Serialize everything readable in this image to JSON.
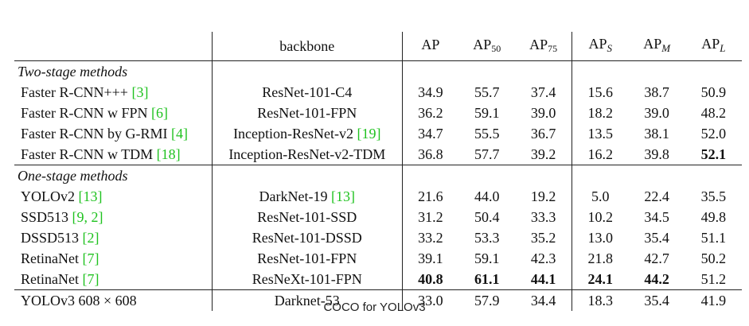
{
  "header": {
    "backbone": "backbone",
    "metrics": [
      {
        "base": "AP",
        "sub": ""
      },
      {
        "base": "AP",
        "sub": "50"
      },
      {
        "base": "AP",
        "sub": "75"
      },
      {
        "base": "AP",
        "sub": "S"
      },
      {
        "base": "AP",
        "sub": "M"
      },
      {
        "base": "AP",
        "sub": "L"
      }
    ]
  },
  "sections": [
    {
      "title": "Two-stage methods",
      "rows": [
        {
          "method": "Faster R-CNN+++",
          "cite": "[3]",
          "backbone": "ResNet-101-C4",
          "backbone_cite": "",
          "values": [
            "34.9",
            "55.7",
            "37.4",
            "15.6",
            "38.7",
            "50.9"
          ],
          "bold": [
            false,
            false,
            false,
            false,
            false,
            false
          ]
        },
        {
          "method": "Faster R-CNN w FPN",
          "cite": "[6]",
          "backbone": "ResNet-101-FPN",
          "backbone_cite": "",
          "values": [
            "36.2",
            "59.1",
            "39.0",
            "18.2",
            "39.0",
            "48.2"
          ],
          "bold": [
            false,
            false,
            false,
            false,
            false,
            false
          ]
        },
        {
          "method": "Faster R-CNN by G-RMI",
          "cite": "[4]",
          "backbone": "Inception-ResNet-v2",
          "backbone_cite": "[19]",
          "values": [
            "34.7",
            "55.5",
            "36.7",
            "13.5",
            "38.1",
            "52.0"
          ],
          "bold": [
            false,
            false,
            false,
            false,
            false,
            false
          ]
        },
        {
          "method": "Faster R-CNN w TDM",
          "cite": "[18]",
          "backbone": "Inception-ResNet-v2-TDM",
          "backbone_cite": "",
          "values": [
            "36.8",
            "57.7",
            "39.2",
            "16.2",
            "39.8",
            "52.1"
          ],
          "bold": [
            false,
            false,
            false,
            false,
            false,
            true
          ]
        }
      ]
    },
    {
      "title": "One-stage methods",
      "rows": [
        {
          "method": "YOLOv2",
          "cite": "[13]",
          "backbone": "DarkNet-19",
          "backbone_cite": "[13]",
          "values": [
            "21.6",
            "44.0",
            "19.2",
            "5.0",
            "22.4",
            "35.5"
          ],
          "bold": [
            false,
            false,
            false,
            false,
            false,
            false
          ]
        },
        {
          "method": "SSD513",
          "cite": "[9, 2]",
          "backbone": "ResNet-101-SSD",
          "backbone_cite": "",
          "values": [
            "31.2",
            "50.4",
            "33.3",
            "10.2",
            "34.5",
            "49.8"
          ],
          "bold": [
            false,
            false,
            false,
            false,
            false,
            false
          ]
        },
        {
          "method": "DSSD513",
          "cite": "[2]",
          "backbone": "ResNet-101-DSSD",
          "backbone_cite": "",
          "values": [
            "33.2",
            "53.3",
            "35.2",
            "13.0",
            "35.4",
            "51.1"
          ],
          "bold": [
            false,
            false,
            false,
            false,
            false,
            false
          ]
        },
        {
          "method": "RetinaNet",
          "cite": "[7]",
          "backbone": "ResNet-101-FPN",
          "backbone_cite": "",
          "values": [
            "39.1",
            "59.1",
            "42.3",
            "21.8",
            "42.7",
            "50.2"
          ],
          "bold": [
            false,
            false,
            false,
            false,
            false,
            false
          ]
        },
        {
          "method": "RetinaNet",
          "cite": "[7]",
          "backbone": "ResNeXt-101-FPN",
          "backbone_cite": "",
          "values": [
            "40.8",
            "61.1",
            "44.1",
            "24.1",
            "44.2",
            "51.2"
          ],
          "bold": [
            true,
            true,
            true,
            true,
            true,
            false
          ]
        },
        {
          "method": "YOLOv3 608 × 608",
          "cite": "",
          "backbone": "Darknet-53",
          "backbone_cite": "",
          "values": [
            "33.0",
            "57.9",
            "34.4",
            "18.3",
            "35.4",
            "41.9"
          ],
          "bold": [
            false,
            false,
            false,
            false,
            false,
            false
          ]
        }
      ]
    }
  ],
  "caption": "COCO for YOLOv3",
  "colors": {
    "citation": "#1fc21f",
    "text": "#111111",
    "rule": "#222222"
  }
}
